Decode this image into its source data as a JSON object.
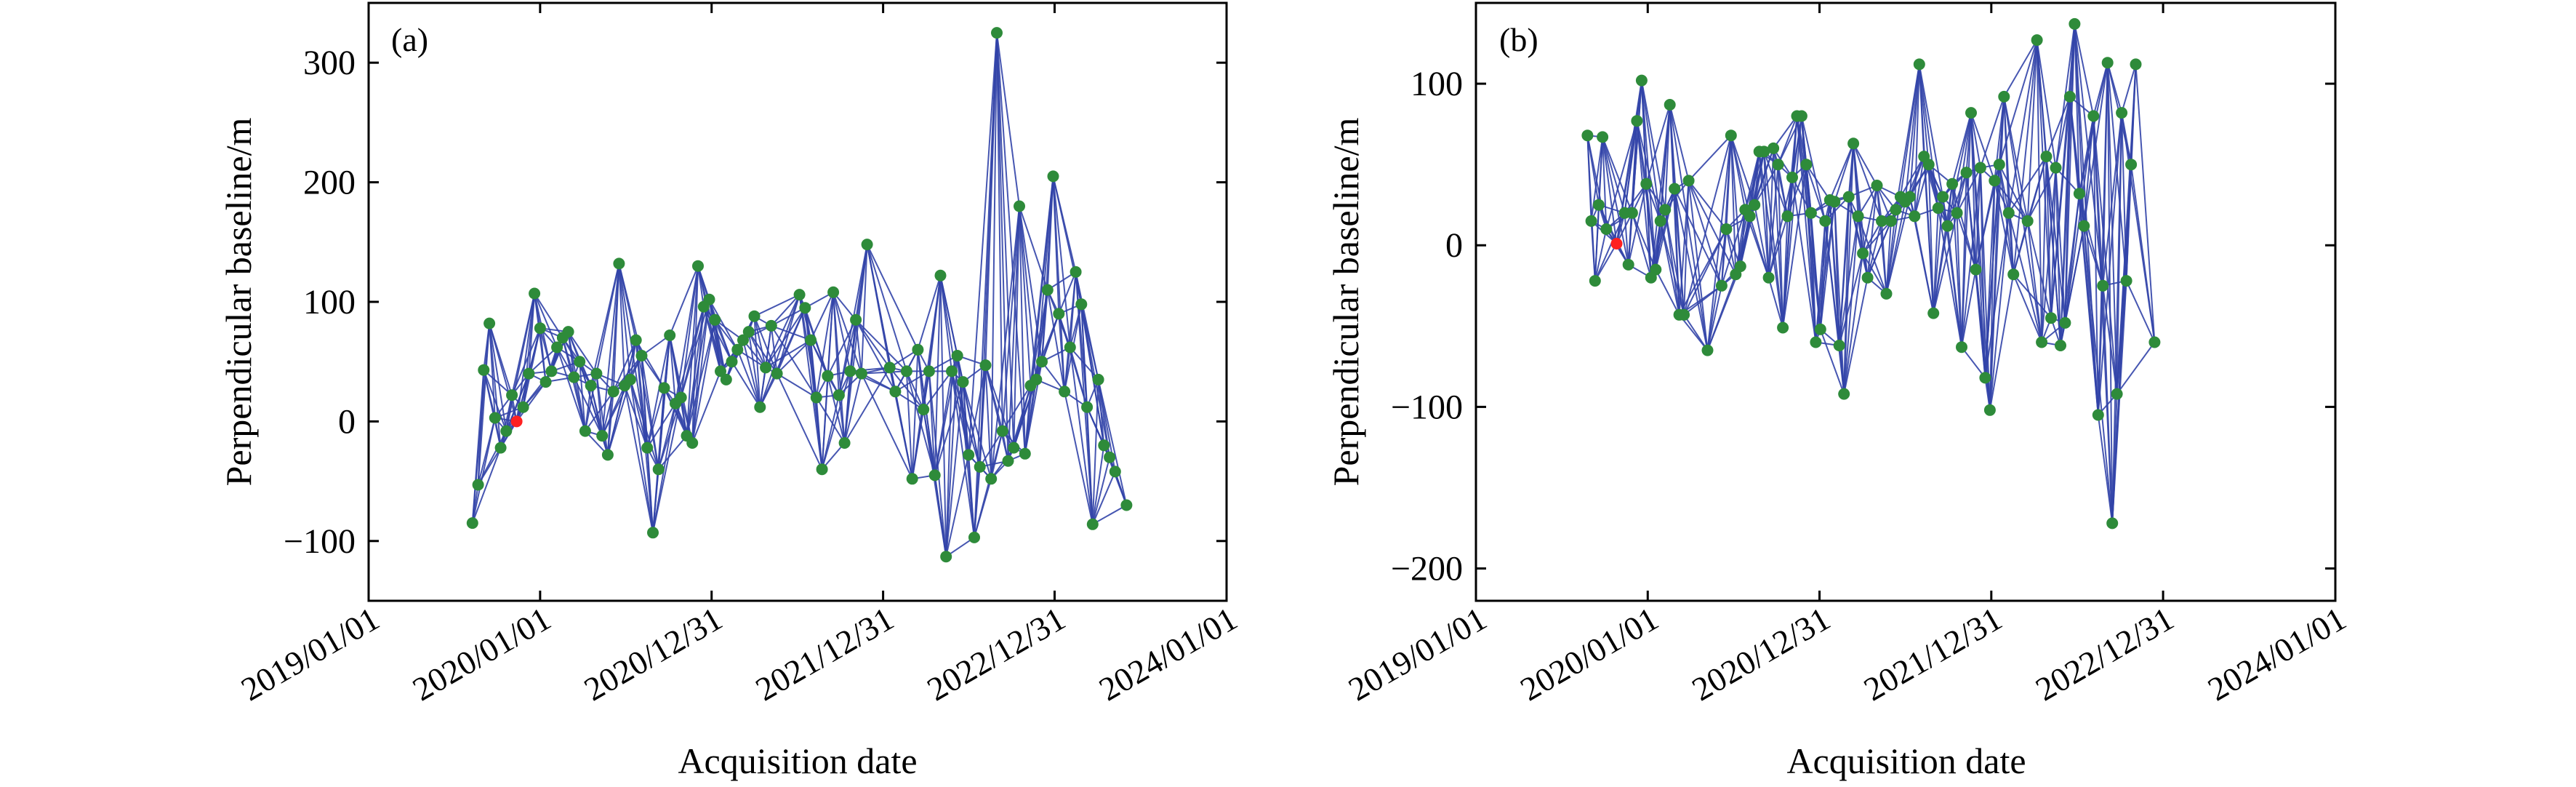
{
  "figure": {
    "background": "#ffffff",
    "edge_color": "#3244a8",
    "point_color": "#2e8b3a",
    "reference_color": "#ff2020"
  },
  "chart_data": [
    {
      "type": "scatter",
      "panel_label": "(a)",
      "xlabel": "Acquisition date",
      "ylabel": "Perpendicular baseline/m",
      "x_axis": "date",
      "xlim": [
        "2019-01-01",
        "2024-01-01"
      ],
      "xticks": [
        "2019-01-01",
        "2020-01-01",
        "2020-12-31",
        "2021-12-31",
        "2022-12-31",
        "2024-01-01"
      ],
      "xtick_labels": [
        "2019/01/01",
        "2020/01/01",
        "2020/12/31",
        "2021/12/31",
        "2022/12/31",
        "2024/01/01"
      ],
      "ylim": [
        -150,
        350
      ],
      "yticks": [
        -100,
        0,
        100,
        200,
        300
      ],
      "ytick_labels": [
        "−100",
        "0",
        "100",
        "200",
        "300"
      ],
      "grid": false,
      "reference": {
        "date": "2019-11-12",
        "baseline": 0
      },
      "points": [
        {
          "date": "2019-08-10",
          "baseline": -85
        },
        {
          "date": "2019-08-22",
          "baseline": -53
        },
        {
          "date": "2019-09-03",
          "baseline": 43
        },
        {
          "date": "2019-09-15",
          "baseline": 82
        },
        {
          "date": "2019-09-27",
          "baseline": 3
        },
        {
          "date": "2019-10-09",
          "baseline": -22
        },
        {
          "date": "2019-10-21",
          "baseline": -8
        },
        {
          "date": "2019-11-02",
          "baseline": 22
        },
        {
          "date": "2019-11-12",
          "baseline": 0
        },
        {
          "date": "2019-11-26",
          "baseline": 12
        },
        {
          "date": "2019-12-08",
          "baseline": 40
        },
        {
          "date": "2019-12-20",
          "baseline": 107
        },
        {
          "date": "2020-01-01",
          "baseline": 78
        },
        {
          "date": "2020-01-13",
          "baseline": 33
        },
        {
          "date": "2020-01-25",
          "baseline": 42
        },
        {
          "date": "2020-02-06",
          "baseline": 62
        },
        {
          "date": "2020-02-18",
          "baseline": 70
        },
        {
          "date": "2020-03-01",
          "baseline": 75
        },
        {
          "date": "2020-03-13",
          "baseline": 37
        },
        {
          "date": "2020-03-25",
          "baseline": 50
        },
        {
          "date": "2020-04-06",
          "baseline": -8
        },
        {
          "date": "2020-04-18",
          "baseline": 30
        },
        {
          "date": "2020-04-30",
          "baseline": 40
        },
        {
          "date": "2020-05-12",
          "baseline": -12
        },
        {
          "date": "2020-05-24",
          "baseline": -28
        },
        {
          "date": "2020-06-05",
          "baseline": 25
        },
        {
          "date": "2020-06-17",
          "baseline": 132
        },
        {
          "date": "2020-06-29",
          "baseline": 30
        },
        {
          "date": "2020-07-11",
          "baseline": 35
        },
        {
          "date": "2020-07-23",
          "baseline": 68
        },
        {
          "date": "2020-08-04",
          "baseline": 55
        },
        {
          "date": "2020-08-16",
          "baseline": -22
        },
        {
          "date": "2020-08-28",
          "baseline": -93
        },
        {
          "date": "2020-09-09",
          "baseline": -40
        },
        {
          "date": "2020-09-21",
          "baseline": 28
        },
        {
          "date": "2020-10-03",
          "baseline": 72
        },
        {
          "date": "2020-10-15",
          "baseline": 15
        },
        {
          "date": "2020-10-27",
          "baseline": 20
        },
        {
          "date": "2020-11-08",
          "baseline": -12
        },
        {
          "date": "2020-11-20",
          "baseline": -18
        },
        {
          "date": "2020-12-02",
          "baseline": 130
        },
        {
          "date": "2020-12-14",
          "baseline": 96
        },
        {
          "date": "2020-12-26",
          "baseline": 102
        },
        {
          "date": "2021-01-07",
          "baseline": 85
        },
        {
          "date": "2021-01-19",
          "baseline": 42
        },
        {
          "date": "2021-01-31",
          "baseline": 35
        },
        {
          "date": "2021-02-12",
          "baseline": 50
        },
        {
          "date": "2021-02-24",
          "baseline": 60
        },
        {
          "date": "2021-03-08",
          "baseline": 68
        },
        {
          "date": "2021-03-20",
          "baseline": 75
        },
        {
          "date": "2021-04-01",
          "baseline": 88
        },
        {
          "date": "2021-04-13",
          "baseline": 12
        },
        {
          "date": "2021-04-25",
          "baseline": 45
        },
        {
          "date": "2021-05-07",
          "baseline": 80
        },
        {
          "date": "2021-05-19",
          "baseline": 40
        },
        {
          "date": "2021-07-06",
          "baseline": 106
        },
        {
          "date": "2021-07-18",
          "baseline": 95
        },
        {
          "date": "2021-07-30",
          "baseline": 68
        },
        {
          "date": "2021-08-11",
          "baseline": 20
        },
        {
          "date": "2021-08-23",
          "baseline": -40
        },
        {
          "date": "2021-09-04",
          "baseline": 38
        },
        {
          "date": "2021-09-16",
          "baseline": 108
        },
        {
          "date": "2021-09-28",
          "baseline": 22
        },
        {
          "date": "2021-10-10",
          "baseline": -18
        },
        {
          "date": "2021-10-22",
          "baseline": 42
        },
        {
          "date": "2021-11-03",
          "baseline": 85
        },
        {
          "date": "2021-11-15",
          "baseline": 40
        },
        {
          "date": "2021-11-27",
          "baseline": 148
        },
        {
          "date": "2022-01-14",
          "baseline": 45
        },
        {
          "date": "2022-01-26",
          "baseline": 25
        },
        {
          "date": "2022-02-19",
          "baseline": 42
        },
        {
          "date": "2022-03-03",
          "baseline": -48
        },
        {
          "date": "2022-03-15",
          "baseline": 60
        },
        {
          "date": "2022-03-27",
          "baseline": 10
        },
        {
          "date": "2022-04-08",
          "baseline": 42
        },
        {
          "date": "2022-04-20",
          "baseline": -45
        },
        {
          "date": "2022-05-02",
          "baseline": 122
        },
        {
          "date": "2022-05-14",
          "baseline": -113
        },
        {
          "date": "2022-05-26",
          "baseline": 42
        },
        {
          "date": "2022-06-07",
          "baseline": 55
        },
        {
          "date": "2022-06-19",
          "baseline": 33
        },
        {
          "date": "2022-07-01",
          "baseline": -28
        },
        {
          "date": "2022-07-13",
          "baseline": -97
        },
        {
          "date": "2022-07-25",
          "baseline": -38
        },
        {
          "date": "2022-08-06",
          "baseline": 47
        },
        {
          "date": "2022-08-18",
          "baseline": -48
        },
        {
          "date": "2022-08-30",
          "baseline": 325
        },
        {
          "date": "2022-09-11",
          "baseline": -8
        },
        {
          "date": "2022-09-23",
          "baseline": -33
        },
        {
          "date": "2022-10-05",
          "baseline": -22
        },
        {
          "date": "2022-10-17",
          "baseline": 180
        },
        {
          "date": "2022-10-29",
          "baseline": -27
        },
        {
          "date": "2022-11-10",
          "baseline": 30
        },
        {
          "date": "2022-11-22",
          "baseline": 35
        },
        {
          "date": "2022-12-04",
          "baseline": 50
        },
        {
          "date": "2022-12-16",
          "baseline": 110
        },
        {
          "date": "2022-12-28",
          "baseline": 205
        },
        {
          "date": "2023-01-09",
          "baseline": 90
        },
        {
          "date": "2023-01-21",
          "baseline": 25
        },
        {
          "date": "2023-02-02",
          "baseline": 62
        },
        {
          "date": "2023-02-14",
          "baseline": 125
        },
        {
          "date": "2023-02-26",
          "baseline": 98
        },
        {
          "date": "2023-03-10",
          "baseline": 12
        },
        {
          "date": "2023-03-22",
          "baseline": -86
        },
        {
          "date": "2023-04-03",
          "baseline": 35
        },
        {
          "date": "2023-04-15",
          "baseline": -20
        },
        {
          "date": "2023-04-27",
          "baseline": -30
        },
        {
          "date": "2023-05-09",
          "baseline": -42
        },
        {
          "date": "2023-06-02",
          "baseline": -70
        }
      ]
    },
    {
      "type": "scatter",
      "panel_label": "(b)",
      "xlabel": "Acquisition date",
      "ylabel": "Perpendicular baseline/m",
      "x_axis": "date",
      "xlim": [
        "2019-01-01",
        "2024-01-01"
      ],
      "xticks": [
        "2019-01-01",
        "2020-01-01",
        "2020-12-31",
        "2021-12-31",
        "2022-12-31",
        "2024-01-01"
      ],
      "xtick_labels": [
        "2019/01/01",
        "2020/01/01",
        "2020/12/31",
        "2021/12/31",
        "2022/12/31",
        "2024/01/01"
      ],
      "ylim": [
        -220,
        150
      ],
      "yticks": [
        -200,
        -100,
        0,
        100
      ],
      "ytick_labels": [
        "−200",
        "−100",
        "0",
        "100"
      ],
      "grid": false,
      "reference": {
        "date": "2019-10-27",
        "baseline": 1
      },
      "points": [
        {
          "date": "2019-08-26",
          "baseline": 68
        },
        {
          "date": "2019-09-03",
          "baseline": 15
        },
        {
          "date": "2019-09-11",
          "baseline": -22
        },
        {
          "date": "2019-09-19",
          "baseline": 25
        },
        {
          "date": "2019-09-27",
          "baseline": 67
        },
        {
          "date": "2019-10-05",
          "baseline": 10
        },
        {
          "date": "2019-10-27",
          "baseline": 1
        },
        {
          "date": "2019-11-13",
          "baseline": 20
        },
        {
          "date": "2019-11-21",
          "baseline": -12
        },
        {
          "date": "2019-11-29",
          "baseline": 20
        },
        {
          "date": "2019-12-09",
          "baseline": 77
        },
        {
          "date": "2019-12-19",
          "baseline": 102
        },
        {
          "date": "2019-12-29",
          "baseline": 38
        },
        {
          "date": "2020-01-08",
          "baseline": -20
        },
        {
          "date": "2020-01-18",
          "baseline": -15
        },
        {
          "date": "2020-01-28",
          "baseline": 15
        },
        {
          "date": "2020-02-07",
          "baseline": 22
        },
        {
          "date": "2020-02-17",
          "baseline": 87
        },
        {
          "date": "2020-02-27",
          "baseline": 35
        },
        {
          "date": "2020-03-08",
          "baseline": -43
        },
        {
          "date": "2020-03-18",
          "baseline": -43
        },
        {
          "date": "2020-03-28",
          "baseline": 40
        },
        {
          "date": "2020-05-07",
          "baseline": -65
        },
        {
          "date": "2020-06-06",
          "baseline": -25
        },
        {
          "date": "2020-06-16",
          "baseline": 10
        },
        {
          "date": "2020-06-26",
          "baseline": 68
        },
        {
          "date": "2020-07-06",
          "baseline": -18
        },
        {
          "date": "2020-07-16",
          "baseline": -13
        },
        {
          "date": "2020-07-26",
          "baseline": 22
        },
        {
          "date": "2020-08-05",
          "baseline": 18
        },
        {
          "date": "2020-08-15",
          "baseline": 25
        },
        {
          "date": "2020-08-25",
          "baseline": 58
        },
        {
          "date": "2020-09-04",
          "baseline": 58
        },
        {
          "date": "2020-09-14",
          "baseline": -20
        },
        {
          "date": "2020-09-24",
          "baseline": 60
        },
        {
          "date": "2020-10-04",
          "baseline": 50
        },
        {
          "date": "2020-10-14",
          "baseline": -51
        },
        {
          "date": "2020-10-24",
          "baseline": 18
        },
        {
          "date": "2020-11-03",
          "baseline": 42
        },
        {
          "date": "2020-11-13",
          "baseline": 80
        },
        {
          "date": "2020-11-23",
          "baseline": 80
        },
        {
          "date": "2020-12-03",
          "baseline": 50
        },
        {
          "date": "2020-12-13",
          "baseline": 20
        },
        {
          "date": "2020-12-23",
          "baseline": -60
        },
        {
          "date": "2021-01-02",
          "baseline": -52
        },
        {
          "date": "2021-01-12",
          "baseline": 15
        },
        {
          "date": "2021-01-22",
          "baseline": 28
        },
        {
          "date": "2021-02-01",
          "baseline": 27
        },
        {
          "date": "2021-02-11",
          "baseline": -62
        },
        {
          "date": "2021-02-21",
          "baseline": -92
        },
        {
          "date": "2021-03-03",
          "baseline": 30
        },
        {
          "date": "2021-03-13",
          "baseline": 63
        },
        {
          "date": "2021-03-23",
          "baseline": 18
        },
        {
          "date": "2021-04-02",
          "baseline": -5
        },
        {
          "date": "2021-04-12",
          "baseline": -20
        },
        {
          "date": "2021-05-02",
          "baseline": 37
        },
        {
          "date": "2021-05-12",
          "baseline": 15
        },
        {
          "date": "2021-05-22",
          "baseline": -30
        },
        {
          "date": "2021-06-01",
          "baseline": 15
        },
        {
          "date": "2021-06-11",
          "baseline": 22
        },
        {
          "date": "2021-06-21",
          "baseline": 30
        },
        {
          "date": "2021-07-01",
          "baseline": 27
        },
        {
          "date": "2021-07-11",
          "baseline": 30
        },
        {
          "date": "2021-07-21",
          "baseline": 18
        },
        {
          "date": "2021-07-31",
          "baseline": 112
        },
        {
          "date": "2021-08-10",
          "baseline": 55
        },
        {
          "date": "2021-08-20",
          "baseline": 50
        },
        {
          "date": "2021-08-30",
          "baseline": -42
        },
        {
          "date": "2021-09-09",
          "baseline": 23
        },
        {
          "date": "2021-09-19",
          "baseline": 30
        },
        {
          "date": "2021-09-29",
          "baseline": 12
        },
        {
          "date": "2021-10-09",
          "baseline": 38
        },
        {
          "date": "2021-10-19",
          "baseline": 20
        },
        {
          "date": "2021-10-29",
          "baseline": -63
        },
        {
          "date": "2021-11-08",
          "baseline": 45
        },
        {
          "date": "2021-11-18",
          "baseline": 82
        },
        {
          "date": "2021-11-28",
          "baseline": -15
        },
        {
          "date": "2021-12-08",
          "baseline": 48
        },
        {
          "date": "2021-12-18",
          "baseline": -82
        },
        {
          "date": "2021-12-28",
          "baseline": -102
        },
        {
          "date": "2022-01-07",
          "baseline": 40
        },
        {
          "date": "2022-01-17",
          "baseline": 50
        },
        {
          "date": "2022-01-27",
          "baseline": 92
        },
        {
          "date": "2022-02-06",
          "baseline": 20
        },
        {
          "date": "2022-02-16",
          "baseline": -18
        },
        {
          "date": "2022-03-18",
          "baseline": 15
        },
        {
          "date": "2022-04-07",
          "baseline": 127
        },
        {
          "date": "2022-04-17",
          "baseline": -60
        },
        {
          "date": "2022-04-27",
          "baseline": 55
        },
        {
          "date": "2022-05-07",
          "baseline": -45
        },
        {
          "date": "2022-05-17",
          "baseline": 48
        },
        {
          "date": "2022-05-27",
          "baseline": -62
        },
        {
          "date": "2022-06-06",
          "baseline": -48
        },
        {
          "date": "2022-06-16",
          "baseline": 92
        },
        {
          "date": "2022-06-26",
          "baseline": 137
        },
        {
          "date": "2022-07-06",
          "baseline": 32
        },
        {
          "date": "2022-07-16",
          "baseline": 12
        },
        {
          "date": "2022-08-05",
          "baseline": 80
        },
        {
          "date": "2022-08-15",
          "baseline": -105
        },
        {
          "date": "2022-08-25",
          "baseline": -25
        },
        {
          "date": "2022-09-04",
          "baseline": 113
        },
        {
          "date": "2022-09-14",
          "baseline": -172
        },
        {
          "date": "2022-09-24",
          "baseline": -92
        },
        {
          "date": "2022-10-04",
          "baseline": 82
        },
        {
          "date": "2022-10-14",
          "baseline": -22
        },
        {
          "date": "2022-10-24",
          "baseline": 50
        },
        {
          "date": "2022-11-03",
          "baseline": 112
        },
        {
          "date": "2022-12-13",
          "baseline": -60
        }
      ]
    }
  ]
}
